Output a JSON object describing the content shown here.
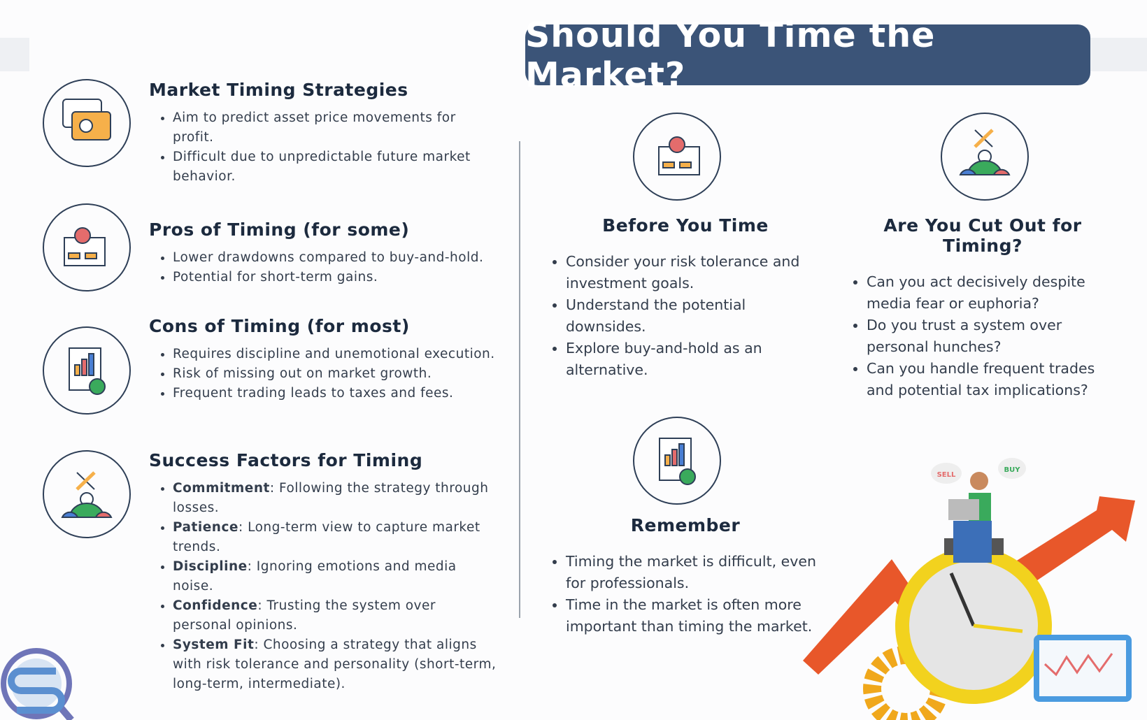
{
  "header": {
    "title": "Should You Time the Market?"
  },
  "left_sections": [
    {
      "heading": "Market Timing Strategies",
      "bullets": [
        {
          "text": "Aim to predict asset price movements for profit."
        },
        {
          "text": "Difficult due to unpredictable future market behavior."
        }
      ]
    },
    {
      "heading": "Pros of Timing (for some)",
      "bullets": [
        {
          "text": "Lower drawdowns compared to buy-and-hold."
        },
        {
          "text": "Potential for short-term gains."
        }
      ]
    },
    {
      "heading": "Cons of Timing (for most)",
      "bullets": [
        {
          "text": "Requires discipline and unemotional execution."
        },
        {
          "text": "Risk of missing out on market growth."
        },
        {
          "text": "Frequent trading leads to taxes and fees."
        }
      ]
    },
    {
      "heading": "Success Factors for Timing",
      "bullets": [
        {
          "term": "Commitment",
          "text": ": Following the strategy through losses."
        },
        {
          "term": "Patience",
          "text": ": Long-term view to capture market trends."
        },
        {
          "term": "Discipline",
          "text": ": Ignoring emotions and media noise."
        },
        {
          "term": "Confidence",
          "text": ": Trusting the system over personal opinions."
        },
        {
          "term": "System Fit",
          "text": ": Choosing a strategy that aligns with risk tolerance and personality (short-term, long-term, intermediate)."
        }
      ]
    }
  ],
  "right_sections": [
    {
      "heading": "Before You Time",
      "bullets": [
        {
          "text": "Consider your risk tolerance and investment goals."
        },
        {
          "text": "Understand the potential downsides."
        },
        {
          "text": "Explore buy-and-hold as an alternative."
        }
      ]
    },
    {
      "heading": "Are You Cut Out for Timing?",
      "bullets": [
        {
          "text": "Can you act decisively despite media fear or euphoria?"
        },
        {
          "text": "Do you trust a system over personal hunches?"
        },
        {
          "text": "Can you handle frequent trades and potential tax implications?"
        }
      ]
    },
    {
      "heading": "Remember",
      "bullets": [
        {
          "text": "Timing the market is difficult, even for professionals."
        },
        {
          "text": "Time in the market is often more important than timing the market."
        }
      ]
    }
  ],
  "illustration": {
    "sell": "SELL",
    "buy": "BUY"
  }
}
